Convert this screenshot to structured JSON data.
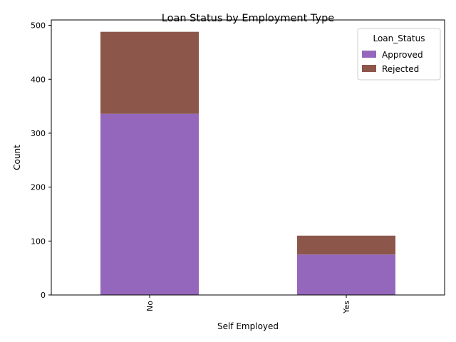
{
  "chart_data": {
    "type": "bar",
    "stacked": true,
    "title": "Loan Status by Employment Type",
    "xlabel": "Self Employed",
    "ylabel": "Count",
    "categories": [
      "No",
      "Yes"
    ],
    "series": [
      {
        "name": "Approved",
        "values": [
          336,
          75
        ],
        "color": "#9467bd"
      },
      {
        "name": "Rejected",
        "values": [
          152,
          35
        ],
        "color": "#8c564b"
      }
    ],
    "ylim": [
      0,
      510
    ],
    "yticks": [
      0,
      100,
      200,
      300,
      400,
      500
    ],
    "legend": {
      "title": "Loan_Status",
      "placement": "top-right"
    },
    "grid": false
  }
}
